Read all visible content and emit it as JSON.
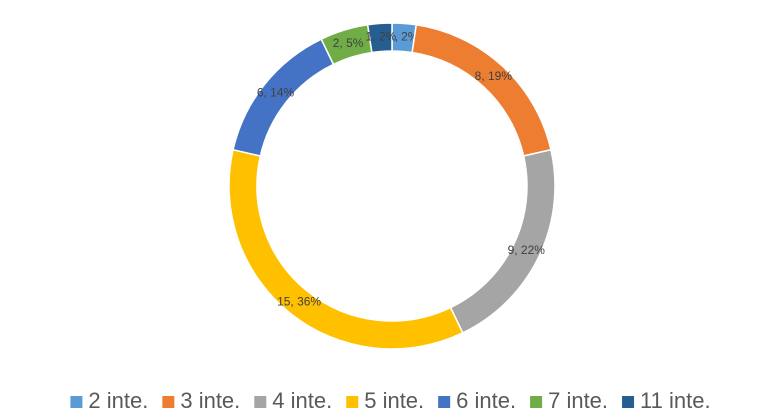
{
  "chart_data": {
    "type": "donut",
    "categories": [
      "2 inte.",
      "3 inte.",
      "4 inte.",
      "5 inte.",
      "6 inte.",
      "7 inte.",
      "11 inte."
    ],
    "values": [
      1,
      8,
      9,
      15,
      6,
      2,
      1
    ],
    "value_labels": [
      "1, 2%",
      "8, 19%",
      "9, 22%",
      "15, 36%",
      "6, 14%",
      "2, 5%",
      "1, 2%"
    ],
    "colors": [
      "#5b9bd5",
      "#ed7d31",
      "#a5a5a5",
      "#ffc000",
      "#4472c4",
      "#70ad47",
      "#255e91"
    ],
    "legend": "bottom"
  }
}
